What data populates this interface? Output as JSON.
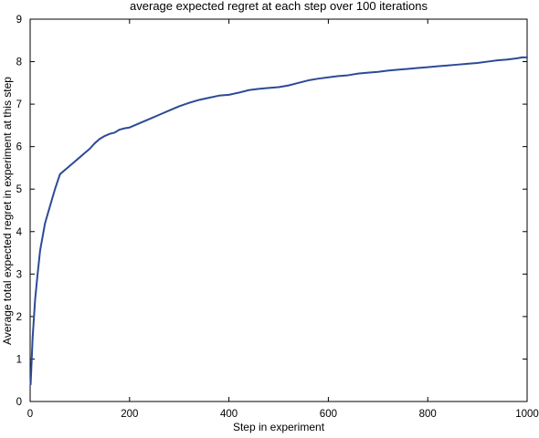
{
  "chart_data": {
    "type": "line",
    "title": "average expected regret at each step over 100 iterations",
    "xlabel": "Step in experiment",
    "ylabel": "Average total expected regret in experiment at this step",
    "xlim": [
      0,
      1000
    ],
    "ylim": [
      0,
      9
    ],
    "xticks": [
      0,
      200,
      400,
      600,
      800,
      1000
    ],
    "yticks": [
      0,
      1,
      2,
      3,
      4,
      5,
      6,
      7,
      8,
      9
    ],
    "grid": false,
    "line_color": "#2c4a96",
    "series": [
      {
        "x": [
          1,
          5,
          10,
          15,
          20,
          30,
          40,
          50,
          60,
          70,
          80,
          90,
          100,
          110,
          120,
          130,
          140,
          150,
          160,
          170,
          180,
          190,
          200,
          220,
          240,
          260,
          280,
          300,
          320,
          340,
          360,
          380,
          400,
          420,
          440,
          460,
          480,
          500,
          520,
          540,
          560,
          580,
          600,
          620,
          640,
          660,
          680,
          700,
          720,
          740,
          760,
          780,
          800,
          820,
          840,
          860,
          880,
          900,
          920,
          940,
          960,
          980,
          990,
          1000
        ],
        "values": [
          0.4,
          1.5,
          2.4,
          3.0,
          3.55,
          4.2,
          4.6,
          5.0,
          5.35,
          5.45,
          5.55,
          5.65,
          5.75,
          5.85,
          5.95,
          6.08,
          6.18,
          6.25,
          6.3,
          6.33,
          6.4,
          6.43,
          6.45,
          6.55,
          6.65,
          6.75,
          6.85,
          6.95,
          7.03,
          7.1,
          7.15,
          7.2,
          7.22,
          7.27,
          7.33,
          7.36,
          7.38,
          7.4,
          7.44,
          7.5,
          7.56,
          7.6,
          7.63,
          7.66,
          7.68,
          7.72,
          7.74,
          7.76,
          7.79,
          7.81,
          7.83,
          7.85,
          7.87,
          7.89,
          7.91,
          7.93,
          7.95,
          7.97,
          8.0,
          8.03,
          8.05,
          8.08,
          8.1,
          8.1
        ]
      }
    ]
  }
}
